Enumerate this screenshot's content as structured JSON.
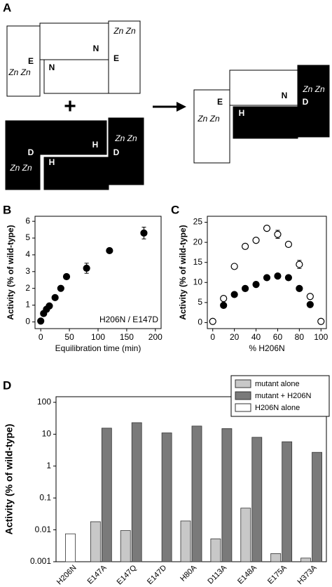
{
  "panels": [
    "A",
    "B",
    "C",
    "D"
  ],
  "panel_a": {
    "labels": [
      "E",
      "Zn Zn",
      "N",
      "N",
      "Zn Zn",
      "E",
      "D",
      "Zn Zn",
      "H",
      "H",
      "Zn Zn",
      "D",
      "E",
      "Zn Zn",
      "N",
      "H",
      "Zn Zn",
      "D"
    ],
    "plus": "+"
  },
  "chart_data": [
    {
      "type": "scatter",
      "x": [
        0,
        5,
        10,
        15,
        25,
        35,
        45,
        80,
        120,
        180
      ],
      "values": [
        0.05,
        0.5,
        0.75,
        0.95,
        1.45,
        2.0,
        2.7,
        3.2,
        4.25,
        5.3
      ],
      "errors": [
        null,
        null,
        null,
        null,
        null,
        null,
        null,
        0.3,
        0.1,
        0.35
      ],
      "color": "#000",
      "xlim": [
        -10,
        210
      ],
      "ylim": [
        -0.4,
        6.3
      ],
      "xticks": [
        0,
        50,
        100,
        150,
        200
      ],
      "yticks": [
        0,
        1,
        2,
        3,
        4,
        5,
        6
      ],
      "x_label": "Equilibration time (min)",
      "y_label": "Activity (% of wild-type)",
      "annotation": "H206N / E147D"
    },
    {
      "type": "scatter",
      "x": [
        0,
        10,
        20,
        30,
        40,
        50,
        60,
        70,
        80,
        90,
        100
      ],
      "series": [
        {
          "color": "#000",
          "marker": "open",
          "values": [
            0.3,
            6,
            14,
            19,
            20.5,
            23.5,
            22,
            19.5,
            14.5,
            6.5,
            0.3
          ],
          "errors": [
            null,
            null,
            null,
            null,
            null,
            null,
            1,
            null,
            1,
            null,
            null
          ]
        },
        {
          "color": "#000",
          "marker": "filled",
          "values": [
            null,
            4.3,
            7,
            8.5,
            9.5,
            11.2,
            11.6,
            11.2,
            8.5,
            4.5,
            null
          ]
        }
      ],
      "xlim": [
        -5,
        105
      ],
      "ylim": [
        -1.5,
        26.5
      ],
      "xticks": [
        0,
        20,
        40,
        60,
        80,
        100
      ],
      "yticks": [
        0,
        5,
        10,
        15,
        20,
        25
      ],
      "x_label": "% H206N",
      "y_label": "Activity (% of wild-type)"
    },
    {
      "type": "bar",
      "log_scale": true,
      "categories": [
        "H206N",
        "E147A",
        "E147Q",
        "E147D",
        "H80A",
        "D113A",
        "E148A",
        "E175A",
        "H373A"
      ],
      "series": [
        {
          "name": "mutant alone",
          "color": "#c8c8c8",
          "values": [
            null,
            0.018,
            0.0095,
            null,
            0.019,
            0.0052,
            0.048,
            0.0018,
            0.0013
          ]
        },
        {
          "name": "mutant + H206N",
          "color": "#7a7a7a",
          "values": [
            null,
            15.5,
            23,
            11,
            18,
            15,
            8,
            5.8,
            2.7
          ]
        },
        {
          "name": "H206N alone",
          "color": "#ffffff",
          "values": [
            0.0075,
            null,
            null,
            null,
            null,
            null,
            null,
            null,
            null
          ]
        }
      ],
      "ylim": [
        0.001,
        150
      ],
      "yticks": [
        100,
        10,
        1,
        0.1,
        0.01,
        0.001
      ],
      "y_label": "Activity (% of wild-type)",
      "legend": "top-right"
    }
  ]
}
